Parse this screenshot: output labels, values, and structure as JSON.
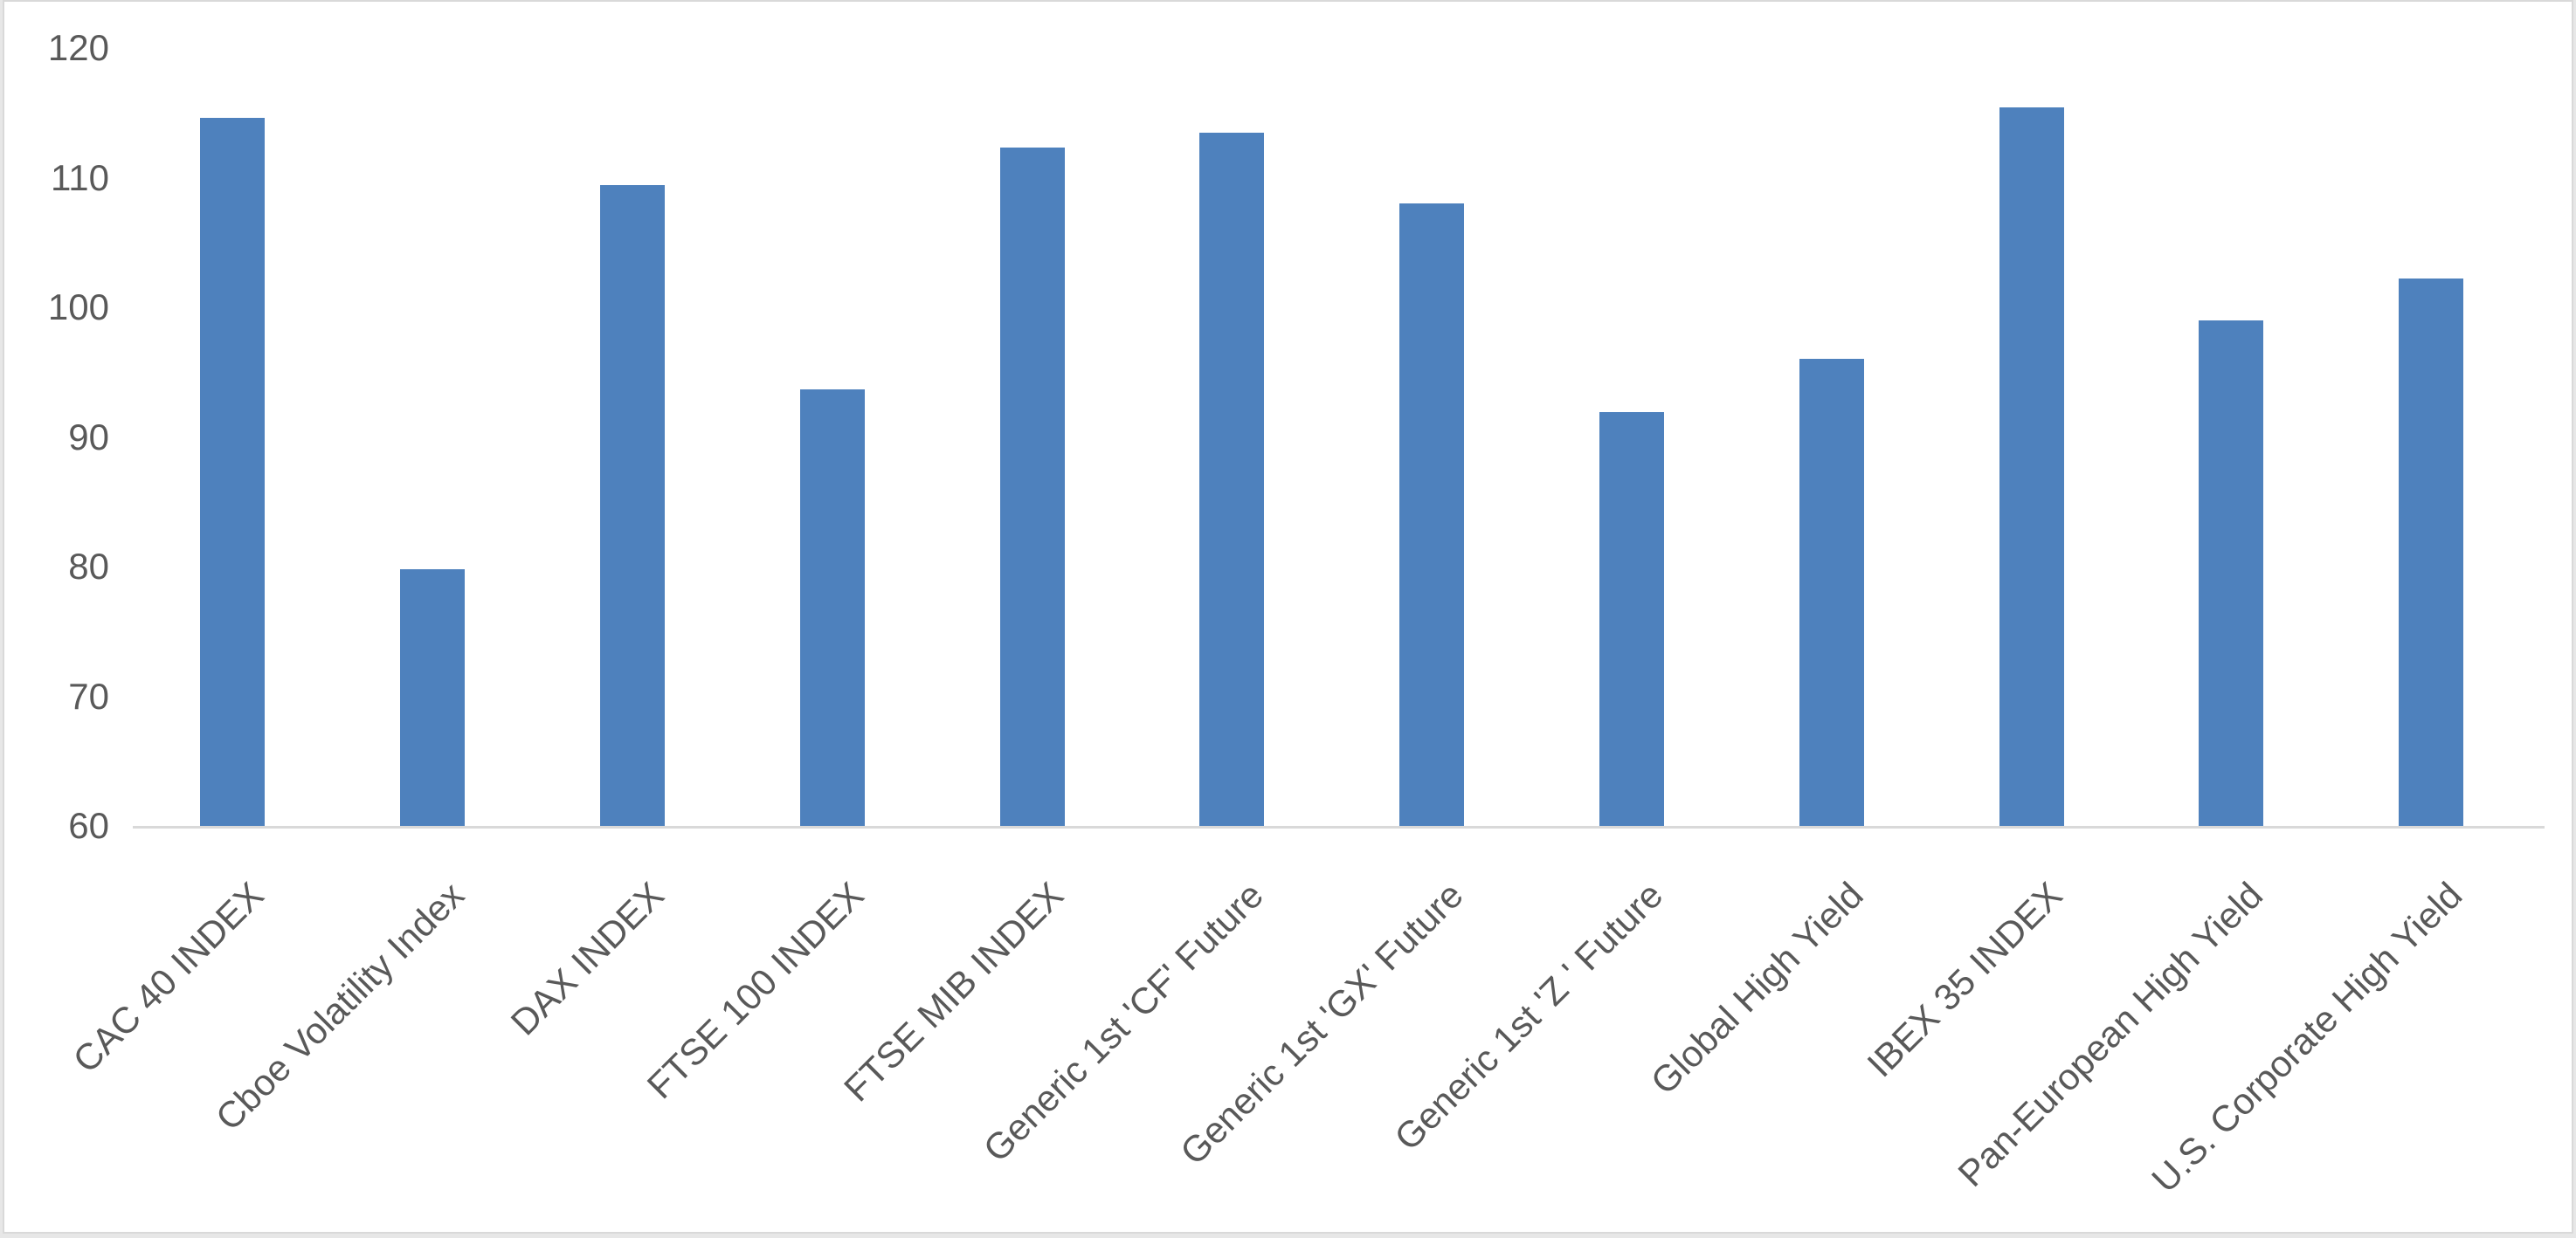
{
  "chart_data": {
    "type": "bar",
    "title": "",
    "xlabel": "",
    "ylabel": "",
    "categories": [
      "CAC 40 INDEX",
      "Cboe Volatility Index",
      "DAX INDEX",
      "FTSE 100 INDEX",
      "FTSE MIB INDEX",
      "Generic 1st 'CF' Future",
      "Generic 1st 'GX' Future",
      "Generic 1st 'Z ' Future",
      "Global High Yield",
      "IBEX 35 INDEX",
      "Pan-European High Yield",
      "U.S. Corporate High Yield"
    ],
    "values": [
      114.6,
      79.8,
      109.4,
      93.7,
      112.3,
      113.5,
      108.0,
      91.9,
      96.0,
      115.4,
      99.0,
      102.2
    ],
    "ylim": [
      60,
      120
    ],
    "yticks": [
      60,
      70,
      80,
      90,
      100,
      110,
      120
    ],
    "grid": false,
    "legend_position": "none",
    "x_label_rotation_deg": 45,
    "bar_color": "#4e81bd",
    "axis_line_color": "#d9d9d9",
    "tick_label_color": "#595959",
    "chart_background": "#ffffff",
    "chart_border_color": "#d9d9d9"
  }
}
